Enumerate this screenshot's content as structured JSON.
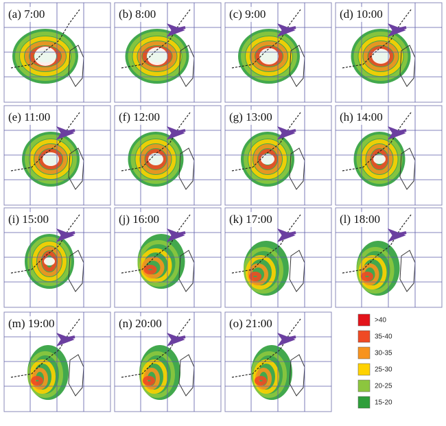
{
  "panels": [
    {
      "label": "(a) 7:00"
    },
    {
      "label": "(b) 8:00"
    },
    {
      "label": "(c) 9:00"
    },
    {
      "label": "(d) 10:00"
    },
    {
      "label": "(e) 11:00"
    },
    {
      "label": "(f) 12:00"
    },
    {
      "label": "(g) 13:00"
    },
    {
      "label": "(h) 14:00"
    },
    {
      "label": "(i) 15:00"
    },
    {
      "label": "(j) 16:00"
    },
    {
      "label": "(k) 17:00"
    },
    {
      "label": "(l) 18:00"
    },
    {
      "label": "(m) 19:00"
    },
    {
      "label": "(n) 20:00"
    },
    {
      "label": "(o) 21:00"
    }
  ],
  "legend": [
    {
      "label": ">40",
      "color": "#e3141b"
    },
    {
      "label": "35-40",
      "color": "#ef4a24"
    },
    {
      "label": "30-35",
      "color": "#f7931e"
    },
    {
      "label": "25-30",
      "color": "#ffd200"
    },
    {
      "label": "20-25",
      "color": "#8cc63e"
    },
    {
      "label": "15-20",
      "color": "#2e9e3a"
    }
  ]
}
